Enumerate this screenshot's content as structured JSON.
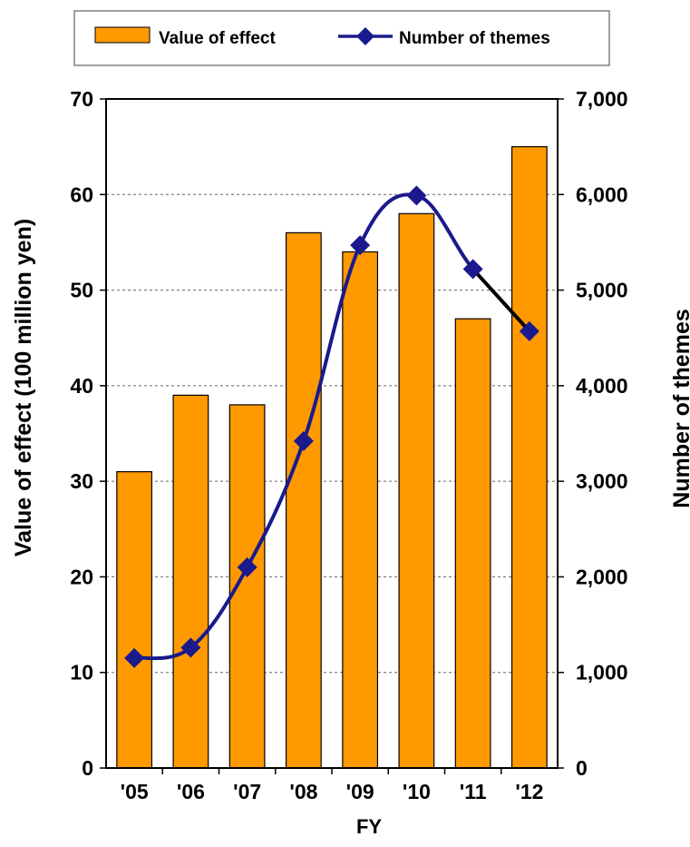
{
  "chart_data": {
    "type": "bar",
    "xlabel": "FY",
    "categories": [
      "'05",
      "'06",
      "'07",
      "'08",
      "'09",
      "'10",
      "'11",
      "'12"
    ],
    "series": [
      {
        "name": "Value of effect",
        "kind": "bar",
        "axis": "left",
        "color": "#FF9900",
        "values": [
          31,
          39,
          38,
          56,
          54,
          58,
          47,
          65
        ]
      },
      {
        "name": "Number of themes",
        "kind": "line",
        "axis": "right",
        "color": "#1A1A8C",
        "marker": "diamond",
        "values": [
          1150,
          1260,
          2100,
          3420,
          5470,
          5990,
          5220,
          4570
        ]
      }
    ],
    "y_left": {
      "label": "Value of effect (100 million yen)",
      "range": [
        0,
        70
      ],
      "ticks": [
        "0",
        "10",
        "20",
        "30",
        "40",
        "50",
        "60",
        "70"
      ]
    },
    "y_right": {
      "label": "Number of themes",
      "range": [
        0,
        7000
      ],
      "ticks": [
        "0",
        "1,000",
        "2,000",
        "3,000",
        "4,000",
        "5,000",
        "6,000",
        "7,000"
      ]
    },
    "grid": "horizontal dashed",
    "legend_position": "top",
    "last_segment_color": "#000000"
  }
}
